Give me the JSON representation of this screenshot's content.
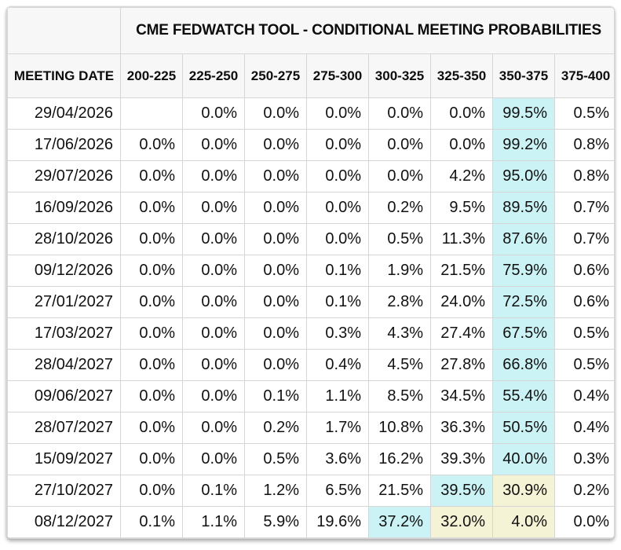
{
  "title": "CME FEDWATCH TOOL - CONDITIONAL MEETING PROBABILITIES",
  "colors": {
    "highlight_primary": "#cbf3f5",
    "highlight_secondary": "#f5f3d6",
    "header_bg": "#f7f7f7",
    "grid_line": "#d6d6d6"
  },
  "table": {
    "date_header": "MEETING DATE",
    "rate_headers": [
      "200-225",
      "225-250",
      "250-275",
      "275-300",
      "300-325",
      "325-350",
      "350-375",
      "375-400"
    ],
    "rows": [
      {
        "date": "29/04/2026",
        "values": [
          "",
          "0.0%",
          "0.0%",
          "0.0%",
          "0.0%",
          "0.0%",
          "99.5%",
          "0.5%"
        ],
        "highlights": [
          null,
          null,
          null,
          null,
          null,
          null,
          "primary",
          null
        ]
      },
      {
        "date": "17/06/2026",
        "values": [
          "0.0%",
          "0.0%",
          "0.0%",
          "0.0%",
          "0.0%",
          "0.0%",
          "99.2%",
          "0.8%"
        ],
        "highlights": [
          null,
          null,
          null,
          null,
          null,
          null,
          "primary",
          null
        ]
      },
      {
        "date": "29/07/2026",
        "values": [
          "0.0%",
          "0.0%",
          "0.0%",
          "0.0%",
          "0.0%",
          "4.2%",
          "95.0%",
          "0.8%"
        ],
        "highlights": [
          null,
          null,
          null,
          null,
          null,
          null,
          "primary",
          null
        ]
      },
      {
        "date": "16/09/2026",
        "values": [
          "0.0%",
          "0.0%",
          "0.0%",
          "0.0%",
          "0.2%",
          "9.5%",
          "89.5%",
          "0.7%"
        ],
        "highlights": [
          null,
          null,
          null,
          null,
          null,
          null,
          "primary",
          null
        ]
      },
      {
        "date": "28/10/2026",
        "values": [
          "0.0%",
          "0.0%",
          "0.0%",
          "0.0%",
          "0.5%",
          "11.3%",
          "87.6%",
          "0.7%"
        ],
        "highlights": [
          null,
          null,
          null,
          null,
          null,
          null,
          "primary",
          null
        ]
      },
      {
        "date": "09/12/2026",
        "values": [
          "0.0%",
          "0.0%",
          "0.0%",
          "0.1%",
          "1.9%",
          "21.5%",
          "75.9%",
          "0.6%"
        ],
        "highlights": [
          null,
          null,
          null,
          null,
          null,
          null,
          "primary",
          null
        ]
      },
      {
        "date": "27/01/2027",
        "values": [
          "0.0%",
          "0.0%",
          "0.0%",
          "0.1%",
          "2.8%",
          "24.0%",
          "72.5%",
          "0.6%"
        ],
        "highlights": [
          null,
          null,
          null,
          null,
          null,
          null,
          "primary",
          null
        ]
      },
      {
        "date": "17/03/2027",
        "values": [
          "0.0%",
          "0.0%",
          "0.0%",
          "0.3%",
          "4.3%",
          "27.4%",
          "67.5%",
          "0.5%"
        ],
        "highlights": [
          null,
          null,
          null,
          null,
          null,
          null,
          "primary",
          null
        ]
      },
      {
        "date": "28/04/2027",
        "values": [
          "0.0%",
          "0.0%",
          "0.0%",
          "0.4%",
          "4.5%",
          "27.8%",
          "66.8%",
          "0.5%"
        ],
        "highlights": [
          null,
          null,
          null,
          null,
          null,
          null,
          "primary",
          null
        ]
      },
      {
        "date": "09/06/2027",
        "values": [
          "0.0%",
          "0.0%",
          "0.1%",
          "1.1%",
          "8.5%",
          "34.5%",
          "55.4%",
          "0.4%"
        ],
        "highlights": [
          null,
          null,
          null,
          null,
          null,
          null,
          "primary",
          null
        ]
      },
      {
        "date": "28/07/2027",
        "values": [
          "0.0%",
          "0.0%",
          "0.2%",
          "1.7%",
          "10.8%",
          "36.3%",
          "50.5%",
          "0.4%"
        ],
        "highlights": [
          null,
          null,
          null,
          null,
          null,
          null,
          "primary",
          null
        ]
      },
      {
        "date": "15/09/2027",
        "values": [
          "0.0%",
          "0.0%",
          "0.5%",
          "3.6%",
          "16.2%",
          "39.3%",
          "40.0%",
          "0.3%"
        ],
        "highlights": [
          null,
          null,
          null,
          null,
          null,
          null,
          "primary",
          null
        ]
      },
      {
        "date": "27/10/2027",
        "values": [
          "0.0%",
          "0.1%",
          "1.2%",
          "6.5%",
          "21.5%",
          "39.5%",
          "30.9%",
          "0.2%"
        ],
        "highlights": [
          null,
          null,
          null,
          null,
          null,
          "primary",
          "secondary",
          null
        ]
      },
      {
        "date": "08/12/2027",
        "values": [
          "0.1%",
          "1.1%",
          "5.9%",
          "19.6%",
          "37.2%",
          "32.0%",
          "4.0%",
          "0.0%"
        ],
        "highlights": [
          null,
          null,
          null,
          null,
          "primary",
          "secondary",
          "secondary",
          null
        ]
      }
    ]
  }
}
